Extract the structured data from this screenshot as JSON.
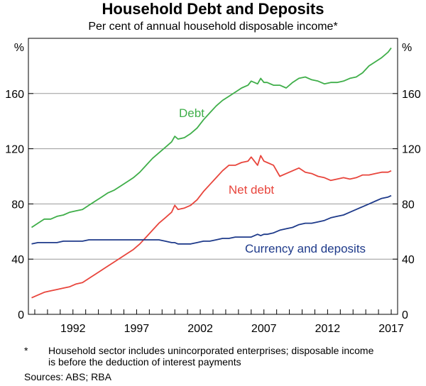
{
  "title": "Household Debt and Deposits",
  "subtitle": "Per cent of annual household disposable income*",
  "footnote_marker": "*",
  "footnote": "Household sector includes unincorporated enterprises; disposable income is before the deduction of interest payments",
  "sources": "Sources: ABS; RBA",
  "chart_data": {
    "type": "line",
    "ylabel_left": "%",
    "ylabel_right": "%",
    "ylim": [
      0,
      200
    ],
    "yticks": [
      0,
      40,
      80,
      120,
      160
    ],
    "xlim": [
      1988.5,
      2017.5
    ],
    "xticks": [
      1992,
      1997,
      2002,
      2007,
      2012,
      2017
    ],
    "grid": true,
    "series": [
      {
        "name": "Debt",
        "color": "#3fae49",
        "x": [
          1988.75,
          1989.25,
          1989.75,
          1990.25,
          1990.75,
          1991.25,
          1991.75,
          1992.25,
          1992.75,
          1993.25,
          1993.75,
          1994.25,
          1994.75,
          1995.25,
          1995.75,
          1996.25,
          1996.75,
          1997.25,
          1997.75,
          1998.25,
          1998.75,
          1999.25,
          1999.75,
          2000.0,
          2000.25,
          2000.75,
          2001.25,
          2001.75,
          2002.25,
          2002.75,
          2003.25,
          2003.75,
          2004.25,
          2004.75,
          2005.25,
          2005.75,
          2006.0,
          2006.5,
          2006.75,
          2007.0,
          2007.25,
          2007.75,
          2008.25,
          2008.75,
          2009.25,
          2009.75,
          2010.25,
          2010.75,
          2011.25,
          2011.75,
          2012.25,
          2012.75,
          2013.25,
          2013.75,
          2014.25,
          2014.75,
          2015.25,
          2015.75,
          2016.25,
          2016.75,
          2017.0
        ],
        "y": [
          63,
          66,
          69,
          69,
          71,
          72,
          74,
          75,
          76,
          79,
          82,
          85,
          88,
          90,
          93,
          96,
          99,
          103,
          108,
          113,
          117,
          121,
          125,
          129,
          127,
          128,
          131,
          135,
          141,
          146,
          151,
          155,
          158,
          161,
          164,
          166,
          169,
          167,
          171,
          168,
          168,
          166,
          166,
          164,
          168,
          171,
          172,
          170,
          169,
          167,
          168,
          168,
          169,
          171,
          172,
          175,
          180,
          183,
          186,
          190,
          193
        ]
      },
      {
        "name": "Net debt",
        "color": "#e8453c",
        "x": [
          1988.75,
          1989.25,
          1989.75,
          1990.25,
          1990.75,
          1991.25,
          1991.75,
          1992.25,
          1992.75,
          1993.25,
          1993.75,
          1994.25,
          1994.75,
          1995.25,
          1995.75,
          1996.25,
          1996.75,
          1997.25,
          1997.75,
          1998.25,
          1998.75,
          1999.25,
          1999.75,
          2000.0,
          2000.25,
          2000.75,
          2001.25,
          2001.75,
          2002.25,
          2002.75,
          2003.25,
          2003.75,
          2004.25,
          2004.75,
          2005.25,
          2005.75,
          2006.0,
          2006.5,
          2006.75,
          2007.0,
          2007.25,
          2007.75,
          2008.25,
          2008.75,
          2009.25,
          2009.75,
          2010.25,
          2010.75,
          2011.25,
          2011.75,
          2012.25,
          2012.75,
          2013.25,
          2013.75,
          2014.25,
          2014.75,
          2015.25,
          2015.75,
          2016.25,
          2016.75,
          2017.0
        ],
        "y": [
          12,
          14,
          16,
          17,
          18,
          19,
          20,
          22,
          23,
          26,
          29,
          32,
          35,
          38,
          41,
          44,
          47,
          51,
          56,
          61,
          66,
          70,
          74,
          79,
          76,
          77,
          79,
          83,
          89,
          94,
          99,
          104,
          108,
          108,
          110,
          111,
          114,
          108,
          115,
          111,
          110,
          108,
          100,
          102,
          104,
          106,
          103,
          102,
          100,
          99,
          97,
          98,
          99,
          98,
          99,
          101,
          101,
          102,
          103,
          103,
          104
        ]
      },
      {
        "name": "Currency and deposits",
        "color": "#1e3a8a",
        "x": [
          1988.75,
          1989.25,
          1989.75,
          1990.25,
          1990.75,
          1991.25,
          1991.75,
          1992.25,
          1992.75,
          1993.25,
          1993.75,
          1994.25,
          1994.75,
          1995.25,
          1995.75,
          1996.25,
          1996.75,
          1997.25,
          1997.75,
          1998.25,
          1998.75,
          1999.25,
          1999.75,
          2000.0,
          2000.25,
          2000.75,
          2001.25,
          2001.75,
          2002.25,
          2002.75,
          2003.25,
          2003.75,
          2004.25,
          2004.75,
          2005.25,
          2005.75,
          2006.0,
          2006.5,
          2006.75,
          2007.0,
          2007.25,
          2007.75,
          2008.25,
          2008.75,
          2009.25,
          2009.75,
          2010.25,
          2010.75,
          2011.25,
          2011.75,
          2012.25,
          2012.75,
          2013.25,
          2013.75,
          2014.25,
          2014.75,
          2015.25,
          2015.75,
          2016.25,
          2016.75,
          2017.0
        ],
        "y": [
          51,
          52,
          52,
          52,
          52,
          53,
          53,
          53,
          53,
          54,
          54,
          54,
          54,
          54,
          54,
          54,
          54,
          54,
          54,
          54,
          54,
          53,
          52,
          52,
          51,
          51,
          51,
          52,
          53,
          53,
          54,
          55,
          55,
          56,
          56,
          56,
          56,
          58,
          57,
          58,
          58,
          59,
          61,
          62,
          63,
          65,
          66,
          66,
          67,
          68,
          70,
          71,
          72,
          74,
          76,
          78,
          80,
          82,
          84,
          85,
          86
        ]
      }
    ]
  }
}
